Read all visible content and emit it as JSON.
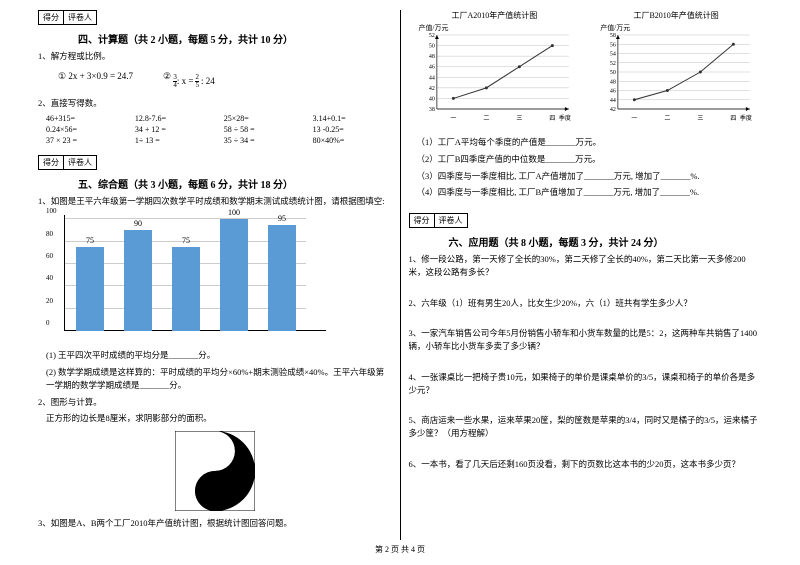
{
  "score_labels": {
    "score": "得分",
    "grader": "评卷人"
  },
  "sec4": {
    "title": "四、计算题（共 2 小题，每题 5 分，共计 10 分）",
    "q1": "1、解方程或比例。",
    "eq1": "① 2x + 3×0.9 = 24.7",
    "eq2": "② ",
    "eq2_frac": "3/4 : x = 2/5 : 24",
    "q2": "2、直接写得数。",
    "calcs": [
      "46+315=",
      "12.8-7.6=",
      "25×28=",
      "3.14+0.1=",
      "0.24×56=",
      "34 + 12 =",
      "58 ÷ 58 =",
      "13 -0.25=",
      "37 × 23 =",
      "1÷ 13 =",
      "35 ÷ 34 =",
      "80×40%="
    ]
  },
  "sec5": {
    "title": "五、综合题（共 3 小题，每题 6 分，共计 18 分）",
    "q1": "1、如图是王平六年级第一学期四次数学平时成绩和数学期末测试成绩统计图，请根据图填空:",
    "chart": {
      "ylim": [
        0,
        100
      ],
      "ytick_step": 20,
      "bars": [
        {
          "label": "",
          "val": 75
        },
        {
          "label": "",
          "val": 90
        },
        {
          "label": "",
          "val": 75
        },
        {
          "label": "",
          "val": 100
        },
        {
          "label": "",
          "val": 95
        }
      ],
      "bar_color": "#5b9bd5",
      "bg": "#fff"
    },
    "sub1": "(1) 王平四次平时成绩的平均分是_______分。",
    "sub2": "(2) 数学学期成绩是这样算的：平时成绩的平均分×60%+期末测验成绩×40%。王平六年级第一学期的数学学期成绩是_______分。",
    "q2": "2、图形与计算。",
    "q2b": "正方形的边长是8厘米，求阴影部分的面积。",
    "q3": "3、如图是A、B两个工厂2010年产值统计图，根据统计图回答问题。"
  },
  "right_charts": {
    "titleA": "工厂A2010年产值统计图",
    "titleB": "工厂B2010年产值统计图",
    "ylabel": "产值/万元",
    "xlabel": "季度",
    "xticks": [
      "一",
      "二",
      "三",
      "四"
    ],
    "A": {
      "ylim": [
        38,
        52
      ],
      "yticks": [
        38,
        40,
        42,
        44,
        46,
        48,
        50,
        52
      ],
      "values": [
        40,
        42,
        46,
        50
      ]
    },
    "B": {
      "ylim": [
        42,
        58
      ],
      "yticks": [
        42,
        44,
        46,
        48,
        50,
        52,
        54,
        56,
        58
      ],
      "values": [
        44,
        46,
        50,
        56
      ]
    },
    "line_color": "#333",
    "grid_color": "#666"
  },
  "right_subs": {
    "s1": "（1）工厂A平均每个季度的产值是_______万元。",
    "s2": "（2）工厂B四季度产值的中位数是_______万元。",
    "s3": "（3）四季度与一季度相比, 工厂A产值增加了_______万元, 增加了_______%.",
    "s4": "（4）四季度与一季度相比, 工厂B产值增加了_______万元, 增加了_______%."
  },
  "sec6": {
    "title": "六、应用题（共 8 小题，每题 3 分，共计 24 分）",
    "q1": "1、修一段公路，第一天修了全长的30%，第二天修了全长的40%，第二天比第一天多修200米，这段公路有多长？",
    "q2": "2、六年级（1）班有男生20人，比女生少20%，六（1）班共有学生多少人？",
    "q3": "3、一家汽车销售公司今年5月份销售小轿车和小货车数量的比是5：2，这两种车共销售了1400辆，小轿车比小货车多卖了多少辆？",
    "q4": "4、一张课桌比一把椅子贵10元，如果椅子的单价是课桌单价的3/5，课桌和椅子的单价各是多少元？",
    "q5": "5、商店运来一些水果，运来苹果20筐，梨的筐数是苹果的3/4，同时又是橘子的3/5，运来橘子多少筐？（用方程解）",
    "q6": "6、一本书，看了几天后还剩160页没看，剩下的页数比这本书的少20页，这本书多少页？"
  },
  "footer": "第 2 页 共 4 页"
}
